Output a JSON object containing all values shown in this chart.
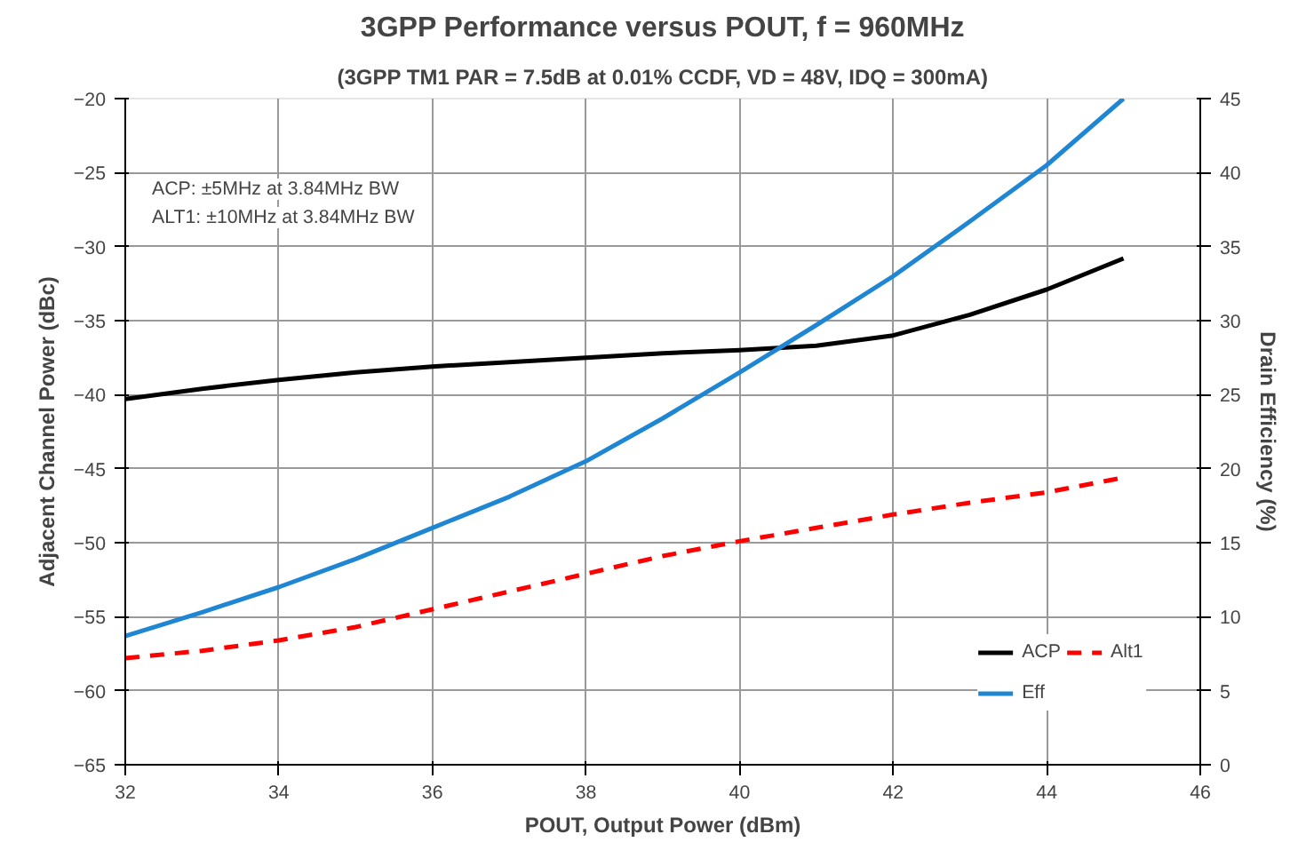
{
  "chart_data": {
    "type": "line",
    "title": "3GPP Performance versus POUT, f = 960MHz",
    "subtitle": "(3GPP TM1 PAR = 7.5dB at 0.01% CCDF, VD = 48V, IDQ = 300mA)",
    "xlabel": "POUT, Output Power (dBm)",
    "ylabel": "Adjacent Channel Power (dBc)",
    "y2label": "Drain Efficiency (%)",
    "x": [
      32,
      33,
      34,
      35,
      36,
      37,
      38,
      39,
      40,
      41,
      42,
      43,
      44,
      45
    ],
    "series": [
      {
        "name": "ACP",
        "color": "#000000",
        "line_style": "solid",
        "values": [
          -40.3,
          -39.6,
          -39.0,
          -38.5,
          -38.1,
          -37.8,
          -37.5,
          -37.2,
          -37.0,
          -36.7,
          -36.0,
          -34.6,
          -32.9,
          -30.8
        ]
      },
      {
        "name": "Alt1",
        "color": "#ff0000",
        "line_style": "dashed",
        "values": [
          -57.8,
          -57.3,
          -56.6,
          -55.7,
          -54.5,
          -53.3,
          -52.1,
          -50.9,
          -49.9,
          -49.0,
          -48.1,
          -47.3,
          -46.6,
          -45.6
        ]
      },
      {
        "name": "Eff",
        "color": "#1f86d4",
        "line_style": "solid",
        "axis": "y2",
        "values": [
          8.7,
          10.3,
          12.0,
          13.9,
          16.0,
          18.1,
          20.5,
          23.4,
          26.5,
          29.7,
          33.0,
          36.7,
          40.5,
          45.0
        ]
      }
    ],
    "xlim": [
      32,
      46
    ],
    "xticks": [
      32,
      34,
      36,
      38,
      40,
      42,
      44,
      46
    ],
    "ylim": [
      -65,
      -20
    ],
    "yticks": [
      -65,
      -60,
      -55,
      -50,
      -45,
      -40,
      -35,
      -30,
      -25,
      -20
    ],
    "y2lim": [
      0,
      45
    ],
    "y2ticks": [
      0,
      5,
      10,
      15,
      20,
      25,
      30,
      35,
      40,
      45
    ],
    "annotations": [
      "ACP: ±5MHz at 3.84MHz BW",
      "ALT1: ±10MHz at 3.84MHz BW"
    ],
    "grid": true,
    "legend": "bottom right",
    "marker": "none"
  }
}
